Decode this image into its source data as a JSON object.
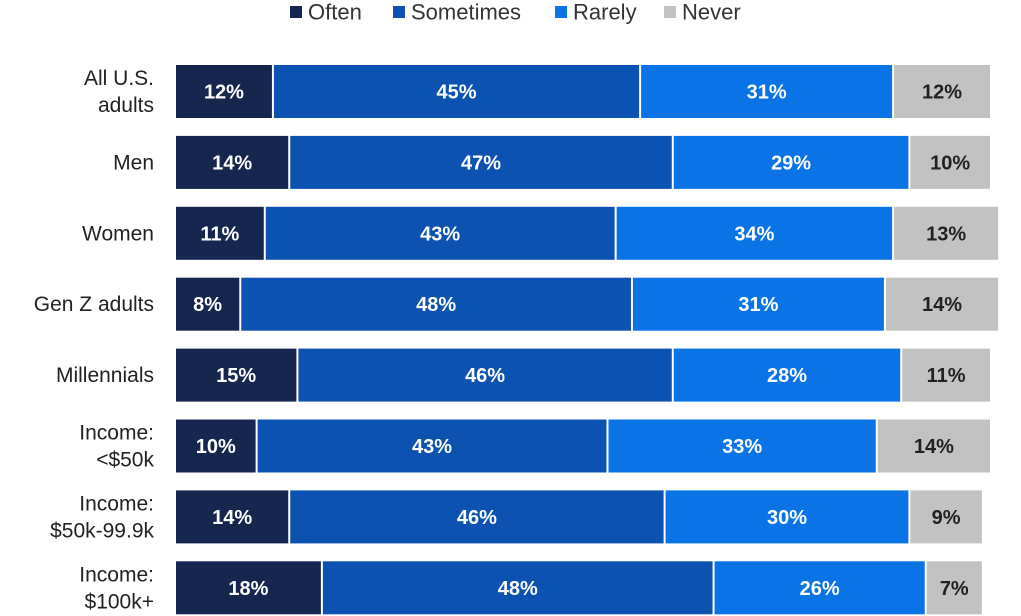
{
  "chart_data": {
    "type": "bar",
    "orientation": "horizontal",
    "stacked": true,
    "percent_suffix": "%",
    "legend_position": "top",
    "xlim": [
      0,
      100
    ],
    "grid": false,
    "categories": [
      [
        "All U.S.",
        "adults"
      ],
      [
        "Men"
      ],
      [
        "Women"
      ],
      [
        "Gen Z adults"
      ],
      [
        "Millennials"
      ],
      [
        "Income:",
        "<$50k"
      ],
      [
        "Income:",
        "$50k-99.9k"
      ],
      [
        "Income:",
        "$100k+"
      ]
    ],
    "series": [
      {
        "name": "Often",
        "color": "#15264f",
        "label_color": "#ffffff",
        "values": [
          12,
          14,
          11,
          8,
          15,
          10,
          14,
          18
        ]
      },
      {
        "name": "Sometimes",
        "color": "#0c52b0",
        "label_color": "#ffffff",
        "values": [
          45,
          47,
          43,
          48,
          46,
          43,
          46,
          48
        ]
      },
      {
        "name": "Rarely",
        "color": "#0a74e6",
        "label_color": "#ffffff",
        "values": [
          31,
          29,
          34,
          31,
          28,
          33,
          30,
          26
        ]
      },
      {
        "name": "Never",
        "color": "#c2c2c2",
        "label_color": "#222222",
        "values": [
          12,
          10,
          13,
          14,
          11,
          14,
          9,
          7
        ]
      }
    ]
  }
}
